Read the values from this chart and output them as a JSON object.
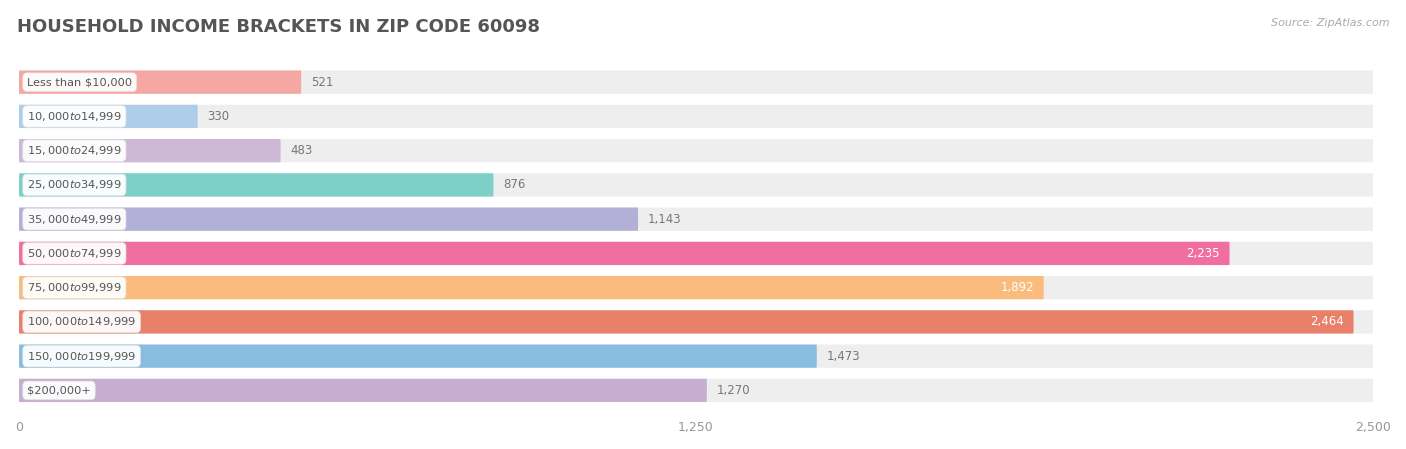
{
  "title": "HOUSEHOLD INCOME BRACKETS IN ZIP CODE 60098",
  "source": "Source: ZipAtlas.com",
  "categories": [
    "Less than $10,000",
    "$10,000 to $14,999",
    "$15,000 to $24,999",
    "$25,000 to $34,999",
    "$35,000 to $49,999",
    "$50,000 to $74,999",
    "$75,000 to $99,999",
    "$100,000 to $149,999",
    "$150,000 to $199,999",
    "$200,000+"
  ],
  "values": [
    521,
    330,
    483,
    876,
    1143,
    2235,
    1892,
    2464,
    1473,
    1270
  ],
  "bar_colors": [
    "#f4a7a3",
    "#aecde8",
    "#cdb8d8",
    "#7ecfc8",
    "#b3b0d8",
    "#f06fa0",
    "#f9bc7c",
    "#e8806a",
    "#89bde0",
    "#c5aed0"
  ],
  "xlim": [
    0,
    2500
  ],
  "xticks": [
    0,
    1250,
    2500
  ],
  "background_color": "#ffffff",
  "bar_bg_color": "#eeeeee",
  "title_fontsize": 13,
  "source_fontsize": 8,
  "bar_height": 0.68,
  "value_threshold": 1600
}
